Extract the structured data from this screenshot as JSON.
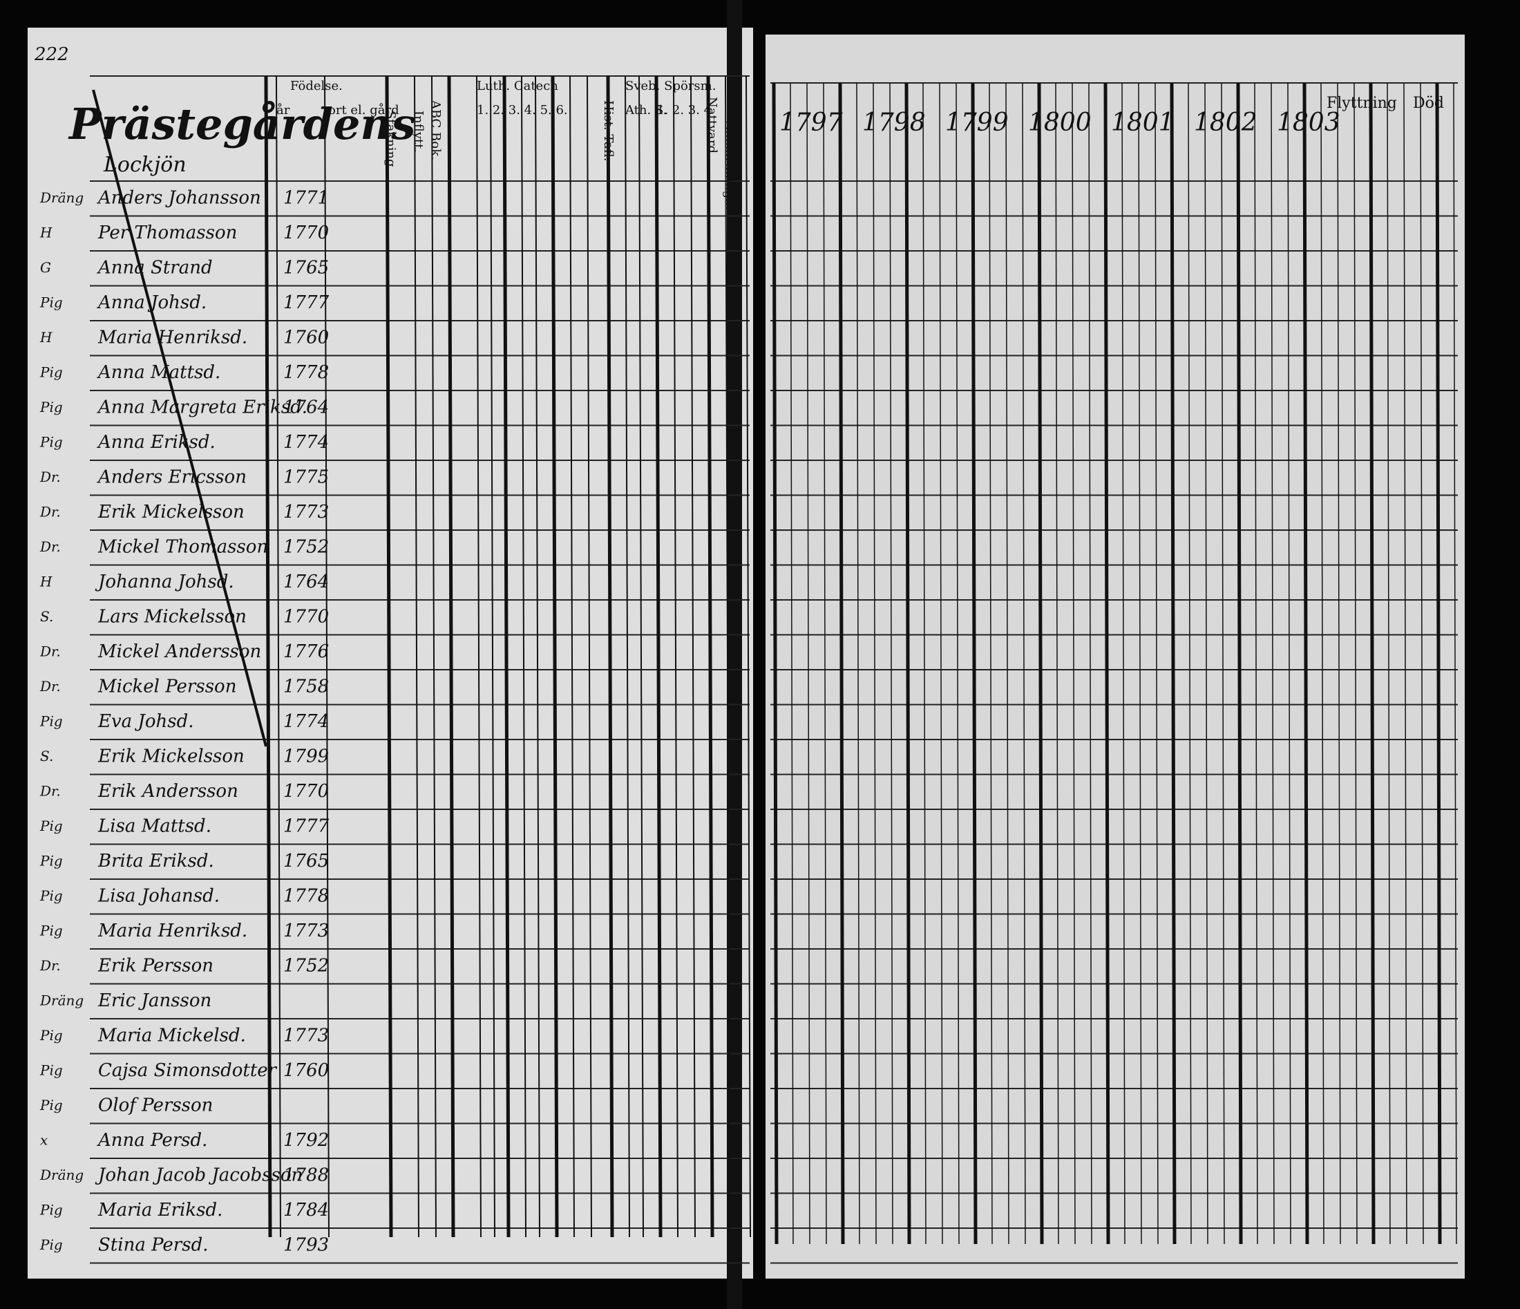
{
  "page_number": "222",
  "title": "Prästegårdens",
  "subtitle": "Lockjön",
  "left_headers": {
    "birth": "Födelse.",
    "year": "år",
    "place": "ort el. gård",
    "smallpox": "Stakning",
    "moved_in": "Inflytt.",
    "abc": "ABC Bok.",
    "catechism": "Luth. Catech",
    "catechism_parts": "1. 2. 3. 4. 5. 6.",
    "tables": "Hist. Tafl.",
    "questions": "Sveb. Spörsm.",
    "ath": "Ath. S.",
    "question_parts": "1. 2. 3. 4",
    "communion": "Nattvard",
    "notes": "Anmärkningar"
  },
  "right_headers": {
    "years": [
      "1797",
      "1798",
      "1799",
      "1800",
      "1801",
      "1802",
      "1803"
    ],
    "moving": "Flyttning",
    "death": "Död"
  },
  "rows": [
    {
      "role": "Dräng",
      "name": "Anders Johansson",
      "year": "1771"
    },
    {
      "role": "H",
      "name": "Per Thomasson",
      "year": "1770"
    },
    {
      "role": "G",
      "name": "Anna Strand",
      "year": "1765"
    },
    {
      "role": "Pig",
      "name": "Anna Johsd.",
      "year": "1777"
    },
    {
      "role": "H",
      "name": "Maria Henriksd.",
      "year": "1760"
    },
    {
      "role": "Pig",
      "name": "Anna Mattsd.",
      "year": "1778"
    },
    {
      "role": "Pig",
      "name": "Anna Margreta Eriksd.",
      "year": "1764"
    },
    {
      "role": "Pig",
      "name": "Anna Eriksd.",
      "year": "1774"
    },
    {
      "role": "Dr.",
      "name": "Anders Ericsson",
      "year": "1775"
    },
    {
      "role": "Dr.",
      "name": "Erik Mickelsson",
      "year": "1773"
    },
    {
      "role": "Dr.",
      "name": "Mickel Thomasson",
      "year": "1752"
    },
    {
      "role": "H",
      "name": "Johanna Johsd.",
      "year": "1764"
    },
    {
      "role": "S.",
      "name": "Lars Mickelsson",
      "year": "1770"
    },
    {
      "role": "Dr.",
      "name": "Mickel Andersson",
      "year": "1776"
    },
    {
      "role": "Dr.",
      "name": "Mickel Persson",
      "year": "1758"
    },
    {
      "role": "Pig",
      "name": "Eva Johsd.",
      "year": "1774"
    },
    {
      "role": "S.",
      "name": "Erik Mickelsson",
      "year": "1799"
    },
    {
      "role": "Dr.",
      "name": "Erik Andersson",
      "year": "1770"
    },
    {
      "role": "Pig",
      "name": "Lisa Mattsd.",
      "year": "1777"
    },
    {
      "role": "Pig",
      "name": "Brita Eriksd.",
      "year": "1765"
    },
    {
      "role": "Pig",
      "name": "Lisa Johansd.",
      "year": "1778"
    },
    {
      "role": "Pig",
      "name": "Maria Henriksd.",
      "year": "1773"
    },
    {
      "role": "Dr.",
      "name": "Erik Persson",
      "year": "1752"
    },
    {
      "role": "Dräng",
      "name": "Eric Jansson"
    },
    {
      "role": "Pig",
      "name": "Maria Mickelsd.",
      "year": "1773"
    },
    {
      "role": "Pig",
      "name": "Cajsa Simonsdotter",
      "year": "1760"
    },
    {
      "role": "Pig",
      "name": "Olof Persson"
    },
    {
      "role": "x",
      "name": "Anna Persd.",
      "year": "1792"
    },
    {
      "role": "Dräng",
      "name": "Johan Jacob Jacobsson",
      "year": "1788"
    },
    {
      "role": "Pig",
      "name": "Maria Eriksd.",
      "year": "1784"
    },
    {
      "role": "Pig",
      "name": "Stina Persd.",
      "year": "1793"
    }
  ]
}
